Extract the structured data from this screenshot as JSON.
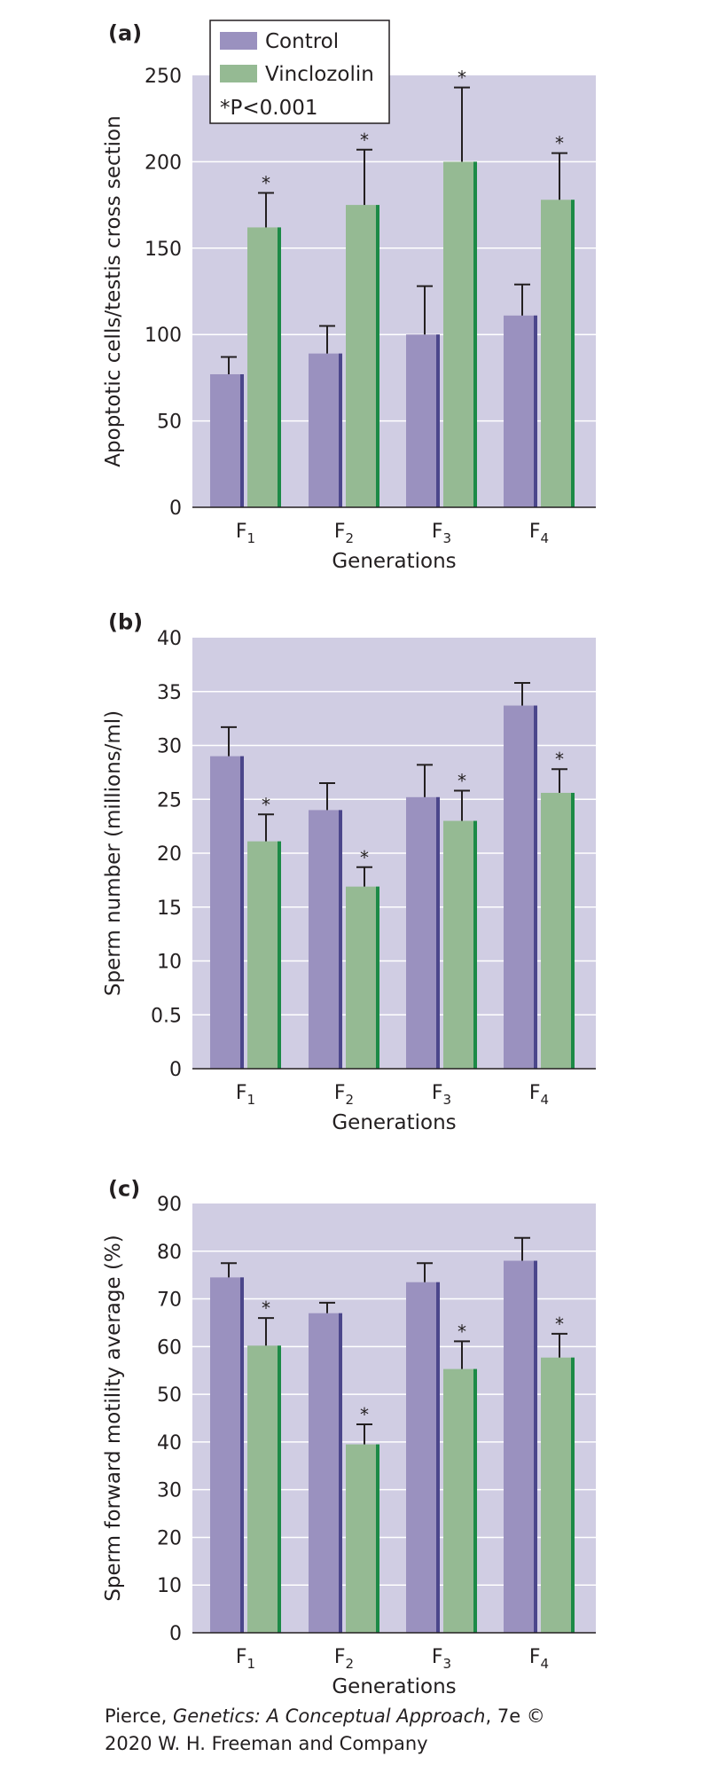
{
  "colors": {
    "plot_bg": "#d0cde3",
    "grid": "#ffffff",
    "control": "#9a91bf",
    "control_edge": "#4b468b",
    "vinclozolin": "#95ba93",
    "vinclozolin_edge": "#1c8a46",
    "axis": "#231f20"
  },
  "legend": {
    "control": "Control",
    "vinclozolin": "Vinclozolin",
    "note": "*P<0.001"
  },
  "generations": [
    {
      "base": "F",
      "sub": "1"
    },
    {
      "base": "F",
      "sub": "2"
    },
    {
      "base": "F",
      "sub": "3"
    },
    {
      "base": "F",
      "sub": "4"
    }
  ],
  "chart_data": [
    {
      "type": "bar",
      "panel_label": "(a)",
      "xlabel": "Generations",
      "ylabel": "Apoptotic cells/testis cross section",
      "ylim": [
        0,
        250
      ],
      "yticks": [
        "0",
        "50",
        "100",
        "150",
        "200",
        "250"
      ],
      "grid": true,
      "legend_position": "top-left",
      "categories": [
        "F1",
        "F2",
        "F3",
        "F4"
      ],
      "series": [
        {
          "name": "Control",
          "values": [
            77,
            89,
            100,
            111
          ],
          "errors": [
            10,
            16,
            28,
            18
          ]
        },
        {
          "name": "Vinclozolin",
          "values": [
            162,
            175,
            200,
            178
          ],
          "errors": [
            20,
            32,
            43,
            27
          ],
          "significant": [
            true,
            true,
            true,
            true
          ]
        }
      ]
    },
    {
      "type": "bar",
      "panel_label": "(b)",
      "xlabel": "Generations",
      "ylabel": "Sperm number (millions/ml)",
      "ylim": [
        0,
        40
      ],
      "yticks": [
        "0",
        "0.5",
        "10",
        "15",
        "20",
        "25",
        "30",
        "35",
        "40"
      ],
      "grid": true,
      "categories": [
        "F1",
        "F2",
        "F3",
        "F4"
      ],
      "series": [
        {
          "name": "Control",
          "values": [
            29,
            24,
            25.2,
            33.7
          ],
          "errors": [
            2.7,
            2.5,
            3,
            2.1
          ]
        },
        {
          "name": "Vinclozolin",
          "values": [
            21.1,
            16.9,
            23,
            25.6
          ],
          "errors": [
            2.5,
            1.8,
            2.8,
            2.2
          ],
          "significant": [
            true,
            true,
            true,
            true
          ]
        }
      ]
    },
    {
      "type": "bar",
      "panel_label": "(c)",
      "xlabel": "Generations",
      "ylabel": "Sperm forward motility average (%)",
      "ylim": [
        0,
        90
      ],
      "yticks": [
        "0",
        "10",
        "20",
        "30",
        "40",
        "50",
        "60",
        "70",
        "80",
        "90"
      ],
      "grid": true,
      "categories": [
        "F1",
        "F2",
        "F3",
        "F4"
      ],
      "series": [
        {
          "name": "Control",
          "values": [
            74.5,
            67,
            73.5,
            78
          ],
          "errors": [
            3,
            2.2,
            4,
            4.8
          ]
        },
        {
          "name": "Vinclozolin",
          "values": [
            60.2,
            39.5,
            55.3,
            57.7
          ],
          "errors": [
            5.8,
            4.2,
            5.8,
            5
          ]
        }
      ]
    }
  ],
  "credit": {
    "line1_pre": "Pierce, ",
    "line1_title": "Genetics: A Conceptual Approach",
    "line1_post": ", 7e ©",
    "line2": "2020 W. H. Freeman and Company"
  }
}
